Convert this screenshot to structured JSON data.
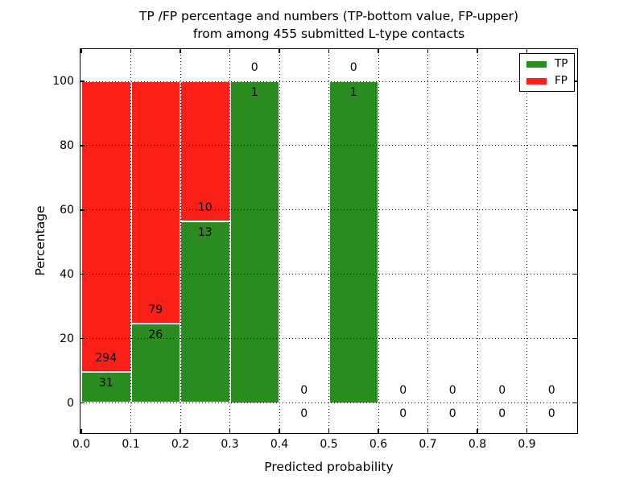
{
  "title": {
    "line1": "TP /FP percentage and numbers (TP-bottom value, FP-upper)",
    "line2": "from among 455 submitted L-type contacts"
  },
  "axes": {
    "xlabel": "Predicted probability",
    "ylabel": "Percentage",
    "xtick_labels": [
      "0.0",
      "0.1",
      "0.2",
      "0.3",
      "0.4",
      "0.5",
      "0.6",
      "0.7",
      "0.8",
      "0.9"
    ],
    "xtick_values": [
      0,
      0.1,
      0.2,
      0.3,
      0.4,
      0.5,
      0.6,
      0.7,
      0.8,
      0.9
    ],
    "ytick_labels": [
      "0",
      "20",
      "40",
      "60",
      "80",
      "100"
    ],
    "ytick_values": [
      0,
      20,
      40,
      60,
      80,
      100
    ]
  },
  "legend": {
    "position": "upper right",
    "items": [
      {
        "label": "TP",
        "color": "#2a8b20"
      },
      {
        "label": "FP",
        "color": "#fa2018"
      }
    ]
  },
  "chart_data": {
    "type": "bar",
    "stacked": true,
    "normalization": "each non-empty bin stacked to 100%, TP on bottom, FP on top",
    "bar_value_labels": "FP count printed above TP/FP boundary, TP count printed below; empty bins show 0 above and 0 below the x-axis",
    "title": "TP /FP percentage and numbers (TP-bottom value, FP-upper) from among 455 submitted L-type contacts",
    "xlabel": "Predicted probability",
    "ylabel": "Percentage",
    "total_submitted": 455,
    "categories": [
      "0.0-0.1",
      "0.1-0.2",
      "0.2-0.3",
      "0.3-0.4",
      "0.4-0.5",
      "0.5-0.6",
      "0.6-0.7",
      "0.7-0.8",
      "0.8-0.9",
      "0.9-1.0"
    ],
    "x_bins": {
      "starts": [
        0,
        0.1,
        0.2,
        0.3,
        0.4,
        0.5,
        0.6,
        0.7,
        0.8,
        0.9
      ],
      "width": 0.1
    },
    "series": [
      {
        "name": "TP",
        "color": "#2a8b20",
        "counts": [
          31,
          26,
          13,
          1,
          0,
          1,
          0,
          0,
          0,
          0
        ]
      },
      {
        "name": "FP",
        "color": "#fa2018",
        "counts": [
          294,
          79,
          10,
          0,
          0,
          0,
          0,
          0,
          0,
          0
        ]
      }
    ],
    "xlim": [
      0,
      1.0
    ],
    "ylim": [
      0,
      100
    ],
    "grid": true,
    "grid_style": "dotted",
    "legend_position": "upper right"
  },
  "colors": {
    "tp": "#2a8b20",
    "fp": "#fa2018",
    "bar_edge": "#ffffff",
    "grid": "#000000",
    "frame": "#000000",
    "text": "#000000",
    "background": "#ffffff"
  }
}
